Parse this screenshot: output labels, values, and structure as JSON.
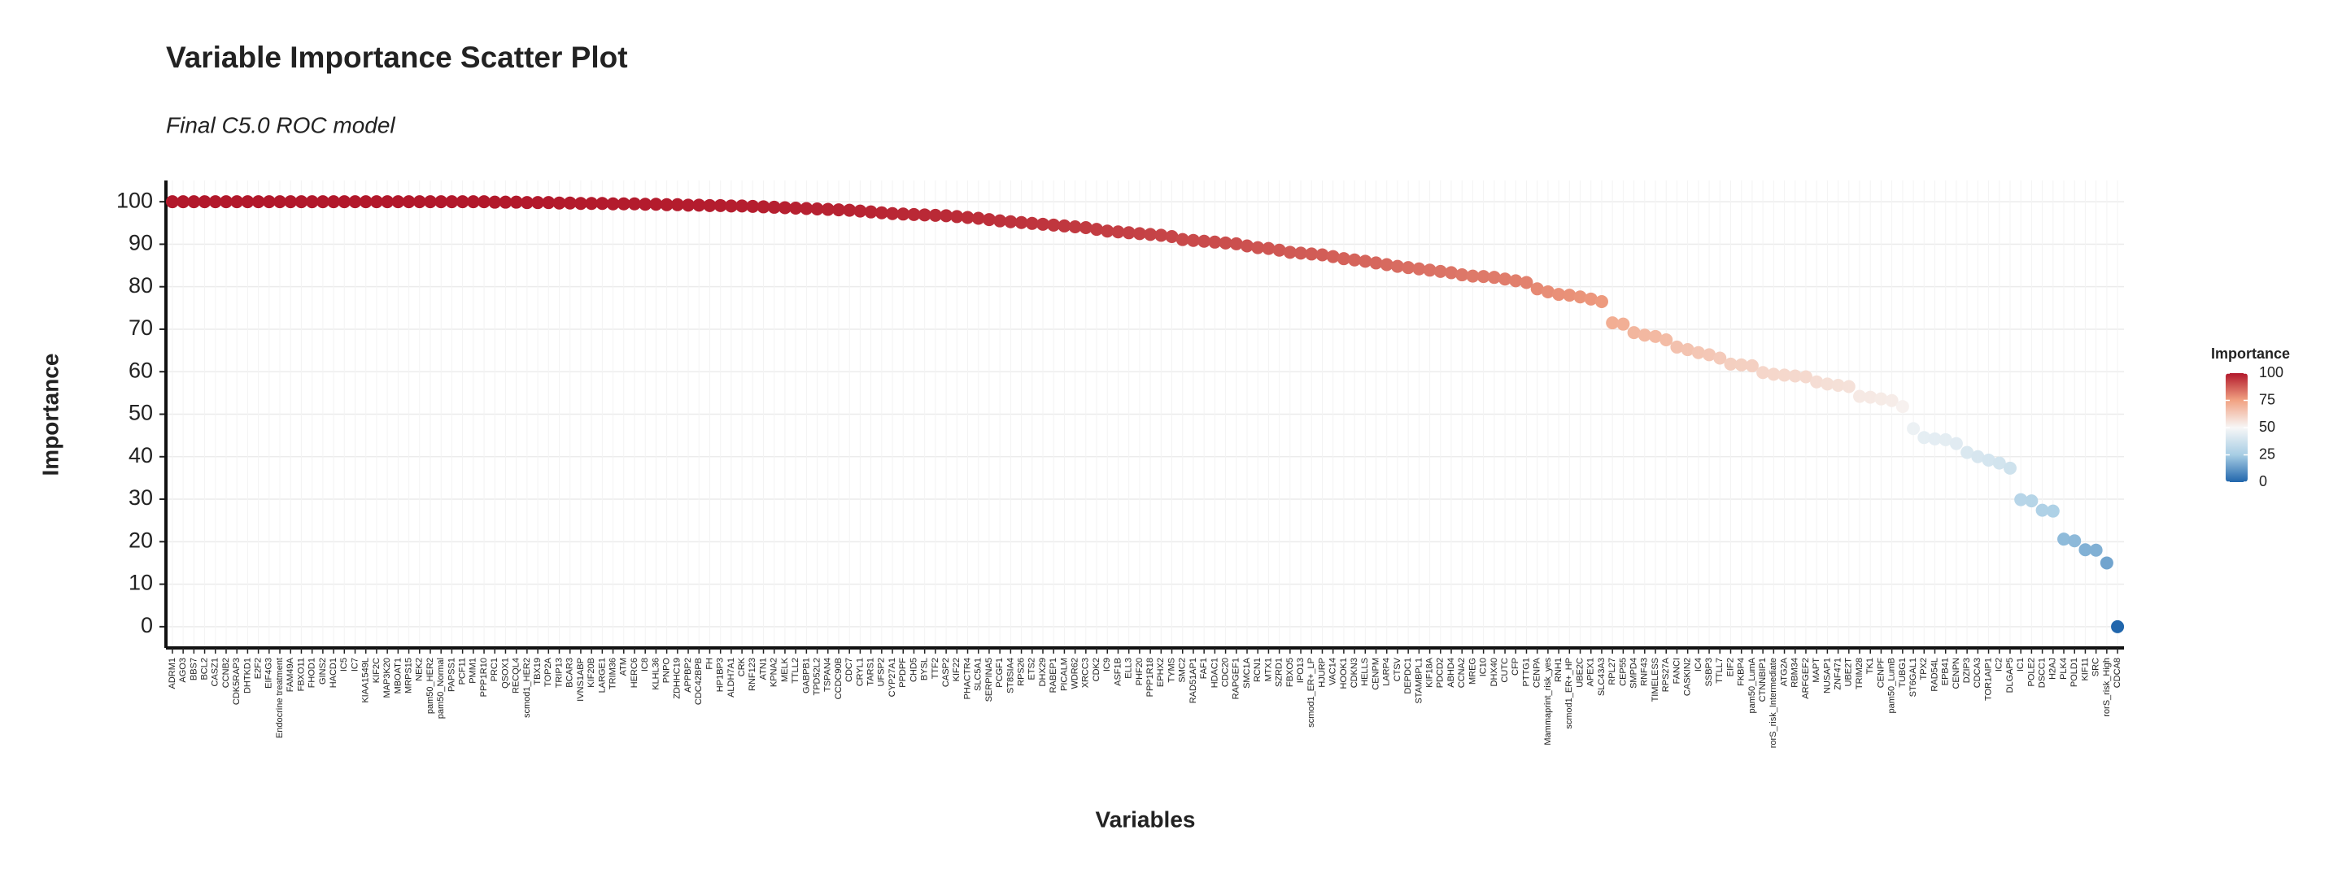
{
  "chart_data": {
    "type": "scatter",
    "title": "Variable Importance Scatter Plot",
    "subtitle": "Final C5.0 ROC model",
    "x_label": "Variables",
    "y_label": "Importance",
    "categories": [
      "ADRM1",
      "AGO3",
      "BBS7",
      "BCL2",
      "CASZ1",
      "CCNB2",
      "CDK5RAP3",
      "DHTKD1",
      "E2F2",
      "EIF4G3",
      "Endocrine treatment",
      "FAM49A",
      "FBXO11",
      "FHOD1",
      "GINS2",
      "HACD1",
      "IC5",
      "IC7",
      "KIAA1549L",
      "KIF2C",
      "MAP3K20",
      "MBOAT1",
      "MRPS15",
      "NEK2",
      "pam50_HER2",
      "pam50_Normal",
      "PAPSS1",
      "PCF11",
      "PMM1",
      "PPP1R10",
      "PRC1",
      "QSOX1",
      "RECQL4",
      "scmod1_HER2",
      "TBX19",
      "TOP2A",
      "TRIP13",
      "BCAR3",
      "IVNS1ABP",
      "KIF20B",
      "LARGE1",
      "TRIM36",
      "ATM",
      "HERC6",
      "IC8",
      "KLHL36",
      "PNPO",
      "ZDHHC19",
      "APPBP2",
      "CDC42BPB",
      "FH",
      "HP1BP3",
      "ALDH7A1",
      "CRK",
      "RNF123",
      "ATN1",
      "KPNA2",
      "MELK",
      "TTLL2",
      "GABPB1",
      "TPD52L2",
      "TSPAN4",
      "CCDC90B",
      "CDC7",
      "CRYL1",
      "TARS1",
      "UFSP2",
      "CYP27A1",
      "PPDPF",
      "CHD5",
      "BYSL",
      "TTF2",
      "CASP2",
      "KIF22",
      "PHACTR4",
      "SLC5A1",
      "SERPINA5",
      "PCGF1",
      "ST8SIA4",
      "RPS26",
      "ETS2",
      "DHX29",
      "RABEP1",
      "PICALM",
      "WDR62",
      "XRCC3",
      "CDK2",
      "IC9",
      "ASF1B",
      "ELL3",
      "PHF20",
      "PPP1R18",
      "EPHX2",
      "TYMS",
      "SMC2",
      "RAD51AP1",
      "FAF1",
      "HDAC1",
      "CDC20",
      "RAPGEF1",
      "SMC1A",
      "RCN1",
      "MTX1",
      "SZRD1",
      "FBXO5",
      "IPO13",
      "scmod1_ER+_LP",
      "HJURP",
      "VAC14",
      "HOOK1",
      "CDKN3",
      "HELLS",
      "CENPM",
      "LARP4",
      "CTSV",
      "DEPDC1",
      "STAMBPL1",
      "KIF18A",
      "PDCD2",
      "ABHD4",
      "CCNA2",
      "MREG",
      "IC10",
      "DHX40",
      "CUTC",
      "CFP",
      "PTTG1",
      "CENPA",
      "Mammaprint_risk_yes",
      "RNH1",
      "scmod1_ER+_HP",
      "UBE2C",
      "APEX1",
      "SLC43A3",
      "RPL27",
      "CEP55",
      "SMPD4",
      "RNF43",
      "TIMELESS",
      "RPS27A",
      "FANCI",
      "CASKIN2",
      "IC4",
      "SSBP3",
      "TTLL7",
      "EIF2",
      "FKBP4",
      "pam50_LumA",
      "CTNNBIP1",
      "rorS_risk_Intermediate",
      "ATG2A",
      "RBM34",
      "ARFGEF2",
      "MAPT",
      "NUSAP1",
      "ZNF471",
      "UBE2T",
      "TRIM28",
      "TK1",
      "CENPF",
      "pam50_LumB",
      "TUBG1",
      "ST6GAL1",
      "TPX2",
      "RAD54L",
      "EPB41",
      "CENPN",
      "DZIP3",
      "CDCA3",
      "TOR1AIP1",
      "IC2",
      "DLGAP5",
      "IC1",
      "POLE2",
      "DSCC1",
      "H2AJ",
      "PLK4",
      "POLD1",
      "KIF11",
      "SRC",
      "rorS_risk_High",
      "CDCA8"
    ],
    "values": [
      100,
      100,
      100,
      100,
      100,
      100,
      100,
      100,
      100,
      100,
      100,
      100,
      100,
      100,
      100,
      100,
      100,
      100,
      100,
      100,
      100,
      100,
      100,
      100,
      100,
      100,
      100,
      100,
      100,
      100,
      99.9,
      99.9,
      99.9,
      99.8,
      99.8,
      99.8,
      99.7,
      99.7,
      99.6,
      99.6,
      99.6,
      99.5,
      99.5,
      99.5,
      99.4,
      99.4,
      99.3,
      99.3,
      99.2,
      99.2,
      99.1,
      99.1,
      99,
      99,
      98.9,
      98.8,
      98.7,
      98.6,
      98.5,
      98.4,
      98.3,
      98.2,
      98.1,
      98,
      97.8,
      97.6,
      97.4,
      97.2,
      97.1,
      97,
      96.9,
      96.8,
      96.7,
      96.5,
      96.3,
      96.1,
      95.8,
      95.5,
      95.3,
      95.1,
      94.9,
      94.7,
      94.5,
      94.3,
      94.1,
      93.9,
      93.5,
      93.1,
      92.9,
      92.7,
      92.5,
      92.3,
      92.1,
      91.8,
      91.1,
      90.9,
      90.7,
      90.5,
      90.3,
      90.1,
      89.6,
      89.2,
      89,
      88.6,
      88.1,
      87.9,
      87.7,
      87.5,
      87.1,
      86.6,
      86.3,
      86,
      85.6,
      85.2,
      84.8,
      84.5,
      84.2,
      83.9,
      83.6,
      83.3,
      82.8,
      82.5,
      82.4,
      82.2,
      81.8,
      81.4,
      81,
      79.5,
      78.8,
      78.2,
      78,
      77.6,
      77.1,
      76.5,
      71.5,
      71.2,
      69.2,
      68.6,
      68.3,
      67.5,
      65.8,
      65.2,
      64.5,
      64,
      63.2,
      61.8,
      61.6,
      61.4,
      59.8,
      59.4,
      59.2,
      59,
      58.8,
      57.6,
      57.1,
      56.8,
      56.5,
      54.2,
      54,
      53.6,
      53.2,
      51.8,
      46.6,
      44.5,
      44.2,
      44,
      43.1,
      41,
      40,
      39.2,
      38.5,
      37.3,
      29.9,
      29.6,
      27.4,
      27.2,
      20.6,
      20.2,
      18.1,
      18,
      15,
      0
    ],
    "ylim": [
      -5,
      105
    ],
    "yticks": [
      0,
      10,
      20,
      30,
      40,
      50,
      60,
      70,
      80,
      90,
      100
    ],
    "grid": true,
    "colorscale": [
      {
        "value": 0,
        "color": "#2166ac"
      },
      {
        "value": 25,
        "color": "#a7cde4"
      },
      {
        "value": 50,
        "color": "#f7f7f7"
      },
      {
        "value": 75,
        "color": "#f1a283"
      },
      {
        "value": 100,
        "color": "#b2182b"
      }
    ],
    "legend": {
      "title": "Importance",
      "position": "right",
      "ticks": [
        0,
        25,
        50,
        75,
        100
      ]
    }
  }
}
